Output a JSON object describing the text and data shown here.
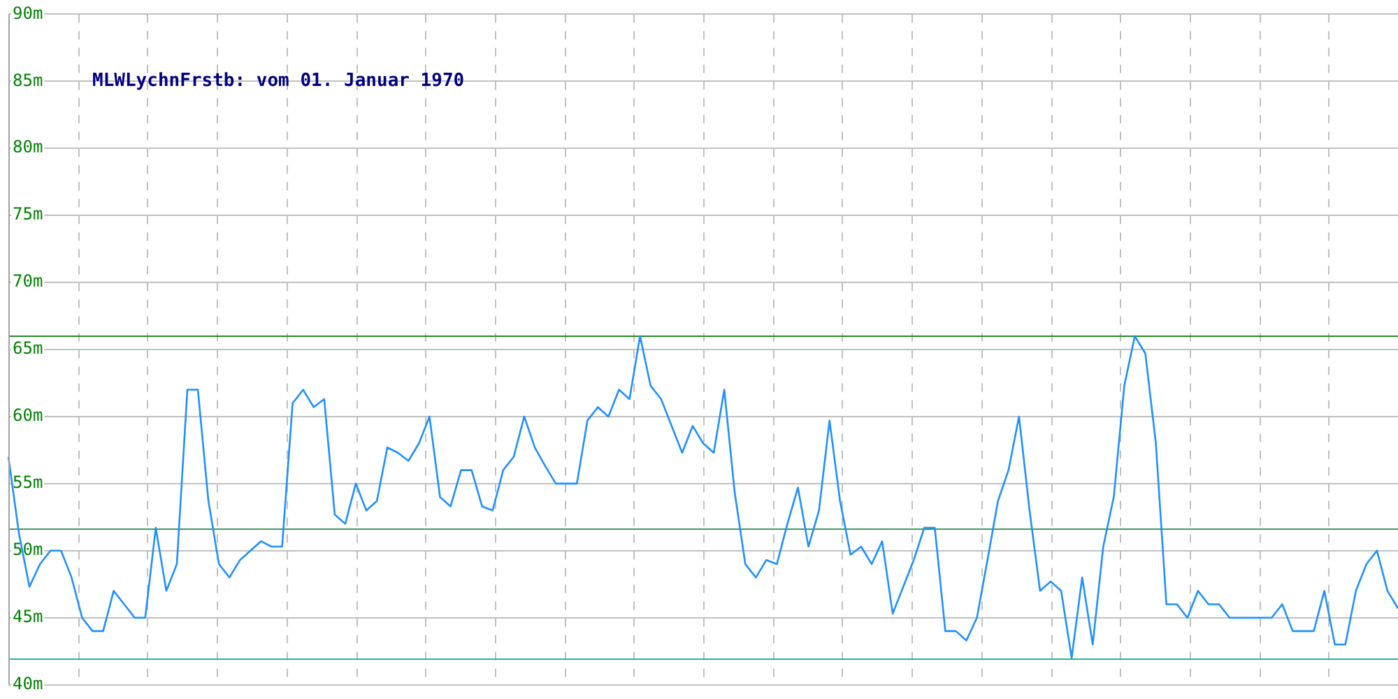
{
  "chart_data": {
    "type": "line",
    "title": "MLWLychnFrstb: vom 01. Januar 1970",
    "categories": [
      null,
      null,
      null,
      null,
      null,
      null,
      null,
      null,
      null,
      null,
      null,
      null,
      null,
      null,
      null,
      null,
      null,
      null,
      null,
      null,
      null,
      null,
      null,
      null,
      null,
      null,
      null,
      null,
      null,
      null,
      null,
      null,
      null,
      null,
      null,
      null,
      null,
      null,
      null,
      null,
      null,
      null,
      null,
      null,
      null,
      null,
      null,
      null,
      null,
      null,
      null,
      null,
      null,
      null,
      null,
      null,
      null,
      null,
      null,
      null,
      null,
      null,
      null,
      null,
      null,
      null,
      null,
      null,
      null,
      null,
      null,
      null,
      null,
      null,
      null,
      null,
      null,
      null,
      null,
      null,
      null,
      null,
      null,
      null,
      null,
      null,
      null,
      null,
      null,
      null,
      null,
      null,
      null,
      null,
      null,
      null,
      null,
      null,
      null,
      null,
      null,
      null,
      null,
      null,
      null,
      null,
      null,
      null,
      null,
      null,
      null,
      null,
      null,
      null,
      null,
      null,
      null,
      null,
      null,
      null,
      null,
      null,
      null,
      null,
      null,
      null,
      null,
      null,
      null,
      null,
      null,
      null,
      null
    ],
    "series": [
      {
        "color": "#1e90ff",
        "values": [
          57,
          51.3,
          47.3,
          49,
          50,
          50,
          48,
          45,
          44,
          44,
          47,
          46,
          45,
          45,
          51.7,
          47,
          49,
          62,
          62,
          53.7,
          49,
          48,
          49.3,
          50,
          50.7,
          50.3,
          50.3,
          61,
          62,
          60.7,
          61.3,
          52.7,
          52,
          55,
          53,
          53.7,
          57.7,
          57.3,
          56.7,
          58,
          60,
          54,
          53.3,
          56,
          56,
          53.3,
          53,
          56,
          57,
          60,
          57.7,
          56.3,
          55,
          55,
          55,
          59.7,
          60.7,
          60,
          62,
          61.3,
          66,
          62.3,
          61.3,
          59.3,
          57.3,
          59.3,
          58,
          57.3,
          62,
          54.3,
          49,
          48,
          49.3,
          49,
          52,
          54.7,
          50.3,
          53,
          59.7,
          53.7,
          49.7,
          50.3,
          49,
          50.7,
          45.3,
          47.3,
          49.3,
          51.7,
          51.7,
          44,
          44,
          43.3,
          45,
          49.3,
          53.7,
          56,
          60,
          53,
          47,
          47.7,
          47,
          42,
          48,
          43,
          50.3,
          54,
          62.3,
          66,
          64.7,
          58,
          46,
          46,
          45,
          47,
          46,
          46,
          45,
          45,
          45,
          45,
          45,
          46,
          44,
          44,
          44,
          47,
          43,
          43,
          47,
          49,
          50,
          47,
          45.7
        ]
      }
    ],
    "ylim": [
      40,
      90
    ],
    "yticks": [
      {
        "value": 40,
        "label": "40m"
      },
      {
        "value": 45,
        "label": "45m"
      },
      {
        "value": 50,
        "label": "50m"
      },
      {
        "value": 55,
        "label": "55m"
      },
      {
        "value": 60,
        "label": "60m"
      },
      {
        "value": 65,
        "label": "65m"
      },
      {
        "value": 70,
        "label": "70m"
      },
      {
        "value": 75,
        "label": "75m"
      },
      {
        "value": 80,
        "label": "80m"
      },
      {
        "value": 85,
        "label": "85m"
      },
      {
        "value": 90,
        "label": "90m"
      }
    ],
    "ref_lines": [
      {
        "axis": "y",
        "value": 66,
        "color": "#228b22"
      },
      {
        "axis": "y",
        "value": 51.7,
        "color": "#3c9a5c"
      },
      {
        "axis": "y",
        "value": 42,
        "color": "#20b2aa"
      }
    ],
    "grid": true,
    "tick_labels": "y",
    "legend": false,
    "marker": "none",
    "line_style": "solid"
  }
}
